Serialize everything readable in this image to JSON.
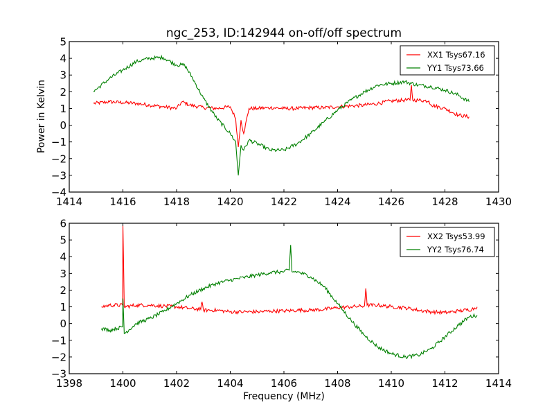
{
  "chart_data": [
    {
      "type": "line",
      "title": "ngc_253, ID:142944 on-off/off spectrum",
      "xlabel": "",
      "ylabel": "Power in Kelvin",
      "xlim": [
        1414,
        1430
      ],
      "ylim": [
        -4,
        5
      ],
      "xticks": [
        1414,
        1416,
        1418,
        1420,
        1422,
        1424,
        1426,
        1428,
        1430
      ],
      "yticks": [
        -4,
        -3,
        -2,
        -1,
        0,
        1,
        2,
        3,
        4,
        5
      ],
      "grid": false,
      "legend_position": "top-right",
      "series": [
        {
          "name": "XX1 Tsys67.16",
          "color": "#ff0000",
          "x": [
            1414.9,
            1415.5,
            1416.0,
            1416.5,
            1417.0,
            1417.5,
            1418.0,
            1418.2,
            1418.5,
            1419.0,
            1419.5,
            1420.0,
            1420.2,
            1420.3,
            1420.4,
            1420.5,
            1420.7,
            1421.0,
            1421.5,
            1422.0,
            1422.5,
            1423.0,
            1423.5,
            1424.0,
            1424.5,
            1425.0,
            1425.5,
            1426.0,
            1426.5,
            1426.7,
            1426.75,
            1426.8,
            1427.0,
            1427.4,
            1427.5,
            1428.0,
            1428.5,
            1428.9
          ],
          "y": [
            1.3,
            1.4,
            1.35,
            1.3,
            1.2,
            1.1,
            1.0,
            1.4,
            1.2,
            1.05,
            1.0,
            1.1,
            0.4,
            -1.3,
            0.3,
            -0.5,
            1.0,
            1.0,
            1.05,
            1.0,
            1.0,
            1.05,
            1.05,
            1.1,
            1.15,
            1.2,
            1.3,
            1.45,
            1.5,
            1.5,
            2.4,
            1.5,
            1.5,
            1.45,
            1.2,
            1.0,
            0.6,
            0.5
          ]
        },
        {
          "name": "YY1 Tsys73.66",
          "color": "#008000",
          "x": [
            1414.9,
            1415.5,
            1416.0,
            1416.5,
            1417.0,
            1417.5,
            1418.0,
            1418.3,
            1418.6,
            1419.0,
            1419.5,
            1420.0,
            1420.2,
            1420.3,
            1420.4,
            1420.5,
            1420.7,
            1421.0,
            1421.5,
            1422.0,
            1422.5,
            1423.0,
            1423.5,
            1424.0,
            1424.5,
            1425.0,
            1425.5,
            1426.0,
            1426.5,
            1427.0,
            1427.5,
            1428.0,
            1428.5,
            1428.9
          ],
          "y": [
            2.0,
            2.8,
            3.3,
            3.8,
            4.0,
            4.05,
            3.6,
            3.6,
            2.8,
            1.6,
            0.4,
            -0.5,
            -1.0,
            -3.0,
            -1.2,
            -1.5,
            -0.9,
            -1.1,
            -1.5,
            -1.5,
            -1.1,
            -0.5,
            0.2,
            0.9,
            1.5,
            2.0,
            2.4,
            2.5,
            2.6,
            2.4,
            2.3,
            2.1,
            1.8,
            1.4
          ]
        }
      ]
    },
    {
      "type": "line",
      "title": "",
      "xlabel": "Frequency (MHz)",
      "ylabel": "",
      "xlim": [
        1398,
        1414
      ],
      "ylim": [
        -3,
        6
      ],
      "xticks": [
        1398,
        1400,
        1402,
        1404,
        1406,
        1408,
        1410,
        1412,
        1414
      ],
      "yticks": [
        -3,
        -2,
        -1,
        0,
        1,
        2,
        3,
        4,
        5,
        6
      ],
      "grid": false,
      "legend_position": "top-right",
      "series": [
        {
          "name": "XX2 Tsys53.99",
          "color": "#ff0000",
          "x": [
            1399.2,
            1399.5,
            1399.99,
            1400.0,
            1400.05,
            1400.5,
            1401.0,
            1401.5,
            1402.0,
            1402.5,
            1402.9,
            1402.95,
            1403.0,
            1403.5,
            1404.0,
            1404.5,
            1405.0,
            1405.5,
            1406.0,
            1406.5,
            1407.0,
            1407.5,
            1408.0,
            1408.5,
            1409.0,
            1409.05,
            1409.1,
            1409.5,
            1410.0,
            1410.5,
            1411.0,
            1411.5,
            1412.0,
            1412.5,
            1413.0,
            1413.2
          ],
          "y": [
            1.0,
            1.1,
            1.1,
            5.9,
            1.0,
            1.1,
            1.1,
            1.05,
            1.0,
            0.9,
            0.85,
            1.3,
            0.8,
            0.8,
            0.7,
            0.7,
            0.7,
            0.75,
            0.75,
            0.8,
            0.8,
            0.85,
            0.95,
            1.0,
            1.05,
            2.1,
            1.1,
            1.1,
            1.0,
            0.95,
            0.8,
            0.7,
            0.65,
            0.75,
            0.85,
            1.0
          ]
        },
        {
          "name": "YY2 Tsys76.74",
          "color": "#008000",
          "x": [
            1399.2,
            1399.5,
            1399.99,
            1400.0,
            1400.05,
            1400.5,
            1401.0,
            1401.5,
            1402.0,
            1402.5,
            1403.0,
            1403.5,
            1404.0,
            1404.5,
            1405.0,
            1405.5,
            1406.0,
            1406.2,
            1406.25,
            1406.3,
            1406.5,
            1407.0,
            1407.5,
            1408.0,
            1408.5,
            1409.0,
            1409.5,
            1410.0,
            1410.5,
            1411.0,
            1411.5,
            1412.0,
            1412.5,
            1412.9,
            1413.2
          ],
          "y": [
            -0.3,
            -0.4,
            -0.2,
            1.5,
            -0.6,
            0.0,
            0.3,
            0.7,
            1.2,
            1.7,
            2.1,
            2.4,
            2.6,
            2.75,
            2.9,
            3.05,
            3.1,
            3.2,
            4.7,
            3.1,
            3.1,
            2.8,
            2.2,
            1.2,
            0.2,
            -0.7,
            -1.4,
            -1.8,
            -2.0,
            -1.9,
            -1.5,
            -0.8,
            -0.1,
            0.4,
            0.5
          ]
        }
      ]
    }
  ]
}
